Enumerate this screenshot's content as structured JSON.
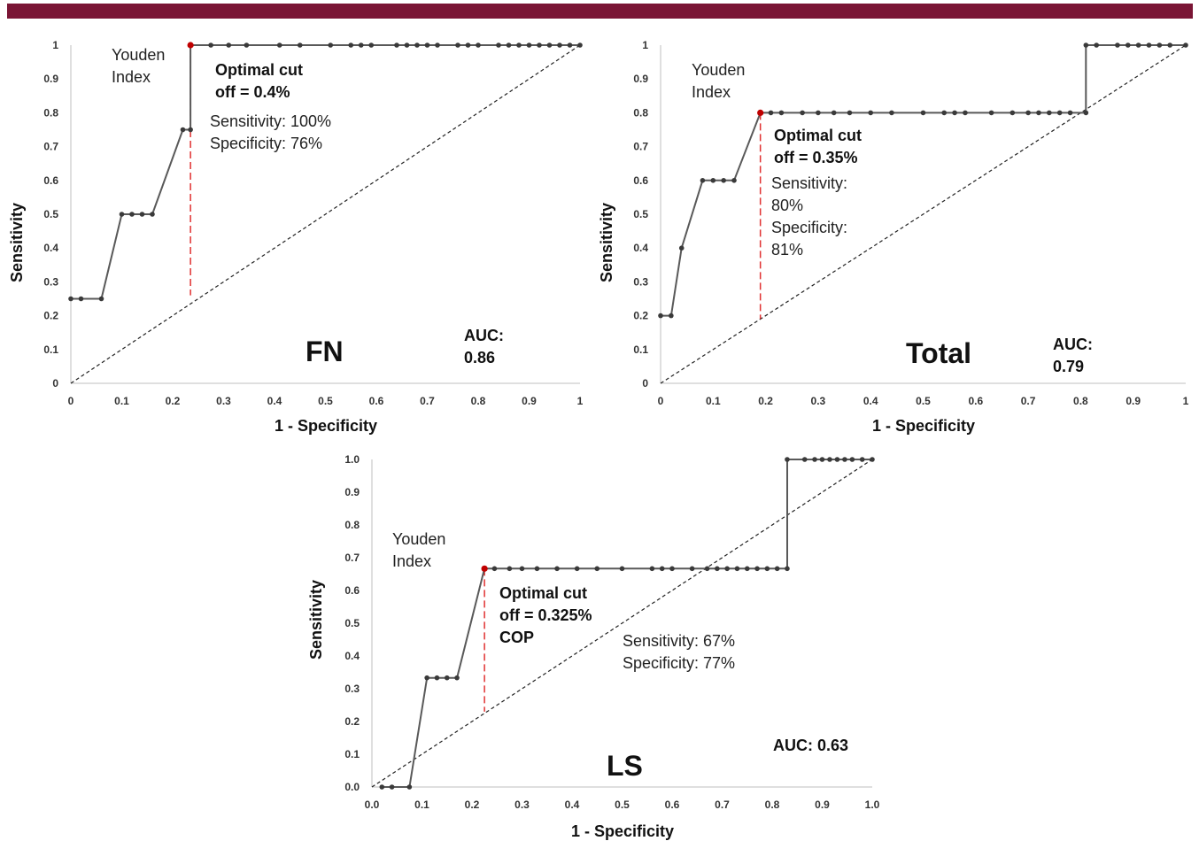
{
  "colors": {
    "top_bar": "#7a1535",
    "curve": "#595959",
    "point": "#3a3a3a",
    "optimal_point": "#c00000",
    "cutoff_line": "#e03030",
    "diagonal": "#222222",
    "axis": "#bfbfbf"
  },
  "chart_data": [
    {
      "type": "line",
      "title": "FN",
      "xlabel": "1 - Specificity",
      "ylabel": "Sensitivity",
      "xlim": [
        0,
        1
      ],
      "ylim": [
        0,
        1
      ],
      "x_ticks": [
        "0",
        "0.1",
        "0.2",
        "0.3",
        "0.4",
        "0.5",
        "0.6",
        "0.7",
        "0.8",
        "0.9",
        "1"
      ],
      "y_ticks": [
        "0",
        "0.1",
        "0.2",
        "0.3",
        "0.4",
        "0.5",
        "0.6",
        "0.7",
        "0.8",
        "0.9",
        "1"
      ],
      "series": [
        {
          "x": [
            0,
            0.02,
            0.06,
            0.1,
            0.12,
            0.14,
            0.16,
            0.22,
            0.235,
            0.235,
            0.275,
            0.31,
            0.345,
            0.41,
            0.45,
            0.51,
            0.55,
            0.57,
            0.59,
            0.64,
            0.66,
            0.68,
            0.7,
            0.72,
            0.76,
            0.78,
            0.8,
            0.84,
            0.86,
            0.88,
            0.9,
            0.92,
            0.94,
            0.96,
            0.98,
            1.0
          ],
          "y": [
            0.25,
            0.25,
            0.25,
            0.5,
            0.5,
            0.5,
            0.5,
            0.75,
            0.75,
            1,
            1,
            1,
            1,
            1,
            1,
            1,
            1,
            1,
            1,
            1,
            1,
            1,
            1,
            1,
            1,
            1,
            1,
            1,
            1,
            1,
            1,
            1,
            1,
            1,
            1,
            1
          ]
        }
      ],
      "reference_line": {
        "x": [
          0,
          1
        ],
        "y": [
          0,
          1
        ]
      },
      "optimal_point": {
        "x": 0.235,
        "y": 1.0
      },
      "cutoff_line": {
        "x": 0.235,
        "y_from": 1.0,
        "y_to": 0.26
      },
      "annotations": {
        "youden": [
          "Youden",
          "Index"
        ],
        "optimal": [
          "Optimal cut",
          "off = 0.4%"
        ],
        "stats": [
          "Sensitivity: 100%",
          "Specificity: 76%"
        ],
        "label": "FN",
        "auc": [
          "AUC:",
          "0.86"
        ]
      }
    },
    {
      "type": "line",
      "title": "Total",
      "xlabel": "1 - Specificity",
      "ylabel": "Sensitivity",
      "xlim": [
        0,
        1
      ],
      "ylim": [
        0,
        1
      ],
      "x_ticks": [
        "0",
        "0.1",
        "0.2",
        "0.3",
        "0.4",
        "0.5",
        "0.6",
        "0.7",
        "0.8",
        "0.9",
        "1"
      ],
      "y_ticks": [
        "0",
        "0.1",
        "0.2",
        "0.3",
        "0.4",
        "0.5",
        "0.6",
        "0.7",
        "0.8",
        "0.9",
        "1"
      ],
      "series": [
        {
          "x": [
            0,
            0.02,
            0.04,
            0.08,
            0.1,
            0.12,
            0.14,
            0.19,
            0.21,
            0.23,
            0.27,
            0.3,
            0.33,
            0.36,
            0.4,
            0.44,
            0.5,
            0.54,
            0.56,
            0.58,
            0.63,
            0.67,
            0.7,
            0.72,
            0.74,
            0.76,
            0.78,
            0.81,
            0.81,
            0.83,
            0.87,
            0.89,
            0.91,
            0.93,
            0.95,
            0.97,
            1.0
          ],
          "y": [
            0.2,
            0.2,
            0.4,
            0.6,
            0.6,
            0.6,
            0.6,
            0.8,
            0.8,
            0.8,
            0.8,
            0.8,
            0.8,
            0.8,
            0.8,
            0.8,
            0.8,
            0.8,
            0.8,
            0.8,
            0.8,
            0.8,
            0.8,
            0.8,
            0.8,
            0.8,
            0.8,
            0.8,
            1,
            1,
            1,
            1,
            1,
            1,
            1,
            1,
            1
          ]
        }
      ],
      "reference_line": {
        "x": [
          0,
          1
        ],
        "y": [
          0,
          1
        ]
      },
      "optimal_point": {
        "x": 0.19,
        "y": 0.8
      },
      "cutoff_line": {
        "x": 0.19,
        "y_from": 0.8,
        "y_to": 0.19
      },
      "annotations": {
        "youden": [
          "Youden",
          "Index"
        ],
        "optimal": [
          "Optimal cut",
          "off = 0.35%"
        ],
        "stats": [
          "Sensitivity:",
          "80%",
          "Specificity:",
          "81%"
        ],
        "label": "Total",
        "auc": [
          "AUC:",
          "0.79"
        ]
      }
    },
    {
      "type": "line",
      "title": "LS",
      "xlabel": "1 - Specificity",
      "ylabel": "Sensitivity",
      "xlim": [
        0,
        1
      ],
      "ylim": [
        0,
        1
      ],
      "x_ticks": [
        "0.0",
        "0.1",
        "0.2",
        "0.3",
        "0.4",
        "0.5",
        "0.6",
        "0.7",
        "0.8",
        "0.9",
        "1.0"
      ],
      "y_ticks": [
        "0.0",
        "0.1",
        "0.2",
        "0.3",
        "0.4",
        "0.5",
        "0.6",
        "0.7",
        "0.8",
        "0.9",
        "1.0"
      ],
      "series": [
        {
          "x": [
            0.02,
            0.04,
            0.075,
            0.11,
            0.13,
            0.15,
            0.17,
            0.225,
            0.245,
            0.275,
            0.3,
            0.33,
            0.37,
            0.41,
            0.45,
            0.5,
            0.56,
            0.58,
            0.6,
            0.64,
            0.67,
            0.69,
            0.71,
            0.73,
            0.75,
            0.77,
            0.79,
            0.81,
            0.83,
            0.83,
            0.865,
            0.885,
            0.9,
            0.915,
            0.93,
            0.945,
            0.96,
            0.98,
            1.0
          ],
          "y": [
            0,
            0,
            0,
            0.3333,
            0.3333,
            0.3333,
            0.3333,
            0.6667,
            0.6667,
            0.6667,
            0.6667,
            0.6667,
            0.6667,
            0.6667,
            0.6667,
            0.6667,
            0.6667,
            0.6667,
            0.6667,
            0.6667,
            0.6667,
            0.6667,
            0.6667,
            0.6667,
            0.6667,
            0.6667,
            0.6667,
            0.6667,
            0.6667,
            1,
            1,
            1,
            1,
            1,
            1,
            1,
            1,
            1,
            1
          ]
        }
      ],
      "reference_line": {
        "x": [
          0,
          1
        ],
        "y": [
          0,
          1
        ]
      },
      "optimal_point": {
        "x": 0.225,
        "y": 0.6667
      },
      "cutoff_line": {
        "x": 0.225,
        "y_from": 0.6667,
        "y_to": 0.23
      },
      "annotations": {
        "youden": [
          "Youden",
          "Index"
        ],
        "optimal": [
          "Optimal cut",
          "off = 0.325%",
          "COP"
        ],
        "stats": [
          "Sensitivity: 67%",
          "Specificity: 77%"
        ],
        "label": "LS",
        "auc": [
          "AUC: 0.63"
        ]
      }
    }
  ]
}
